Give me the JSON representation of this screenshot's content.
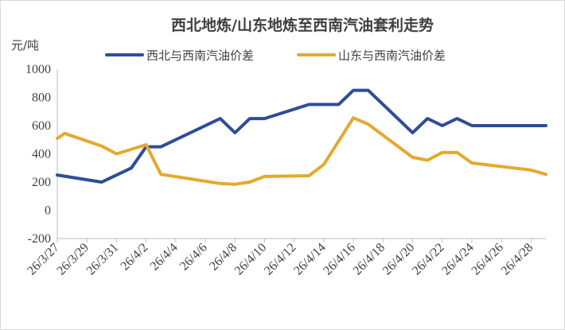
{
  "chart_data": {
    "type": "line",
    "title": "西北地炼/山东地炼至西南汽油套利走势",
    "ylabel": "元/吨",
    "xlabel": "",
    "ylim": [
      -200,
      1000
    ],
    "yticks": [
      -200,
      0,
      200,
      400,
      600,
      800,
      1000
    ],
    "x_range": [
      "26/3/27",
      "26/4/29"
    ],
    "xticks": [
      "26/3/27",
      "26/3/29",
      "26/3/31",
      "26/4/2",
      "26/4/4",
      "26/4/6",
      "26/4/8",
      "26/4/10",
      "26/4/12",
      "26/4/14",
      "26/4/16",
      "26/4/18",
      "26/4/20",
      "26/4/22",
      "26/4/24",
      "26/4/26",
      "26/4/28"
    ],
    "grid": false,
    "legend": "top",
    "series": [
      {
        "name": "西北与西南汽油价差",
        "color": "#2e4d9a",
        "points": [
          [
            "26/3/27",
            250
          ],
          [
            "26/3/30",
            200
          ],
          [
            "26/4/1",
            300
          ],
          [
            "26/4/2",
            450
          ],
          [
            "26/4/3",
            450
          ],
          [
            "26/4/7",
            650
          ],
          [
            "26/4/8",
            550
          ],
          [
            "26/4/9",
            650
          ],
          [
            "26/4/10",
            650
          ],
          [
            "26/4/13",
            750
          ],
          [
            "26/4/15",
            750
          ],
          [
            "26/4/16",
            850
          ],
          [
            "26/4/17",
            850
          ],
          [
            "26/4/20",
            550
          ],
          [
            "26/4/21",
            650
          ],
          [
            "26/4/22",
            600
          ],
          [
            "26/4/23",
            650
          ],
          [
            "26/4/24",
            600
          ],
          [
            "26/4/29",
            600
          ]
        ]
      },
      {
        "name": "山东与西南汽油价差",
        "color": "#e3a92f",
        "points": [
          [
            "26/3/27",
            510
          ],
          [
            "26/3/27.5",
            545
          ],
          [
            "26/3/30",
            455
          ],
          [
            "26/3/31",
            400
          ],
          [
            "26/4/2",
            465
          ],
          [
            "26/4/3",
            255
          ],
          [
            "26/4/7",
            190
          ],
          [
            "26/4/8",
            185
          ],
          [
            "26/4/9",
            200
          ],
          [
            "26/4/10",
            240
          ],
          [
            "26/4/13",
            245
          ],
          [
            "26/4/14",
            325
          ],
          [
            "26/4/16",
            655
          ],
          [
            "26/4/17",
            610
          ],
          [
            "26/4/20",
            375
          ],
          [
            "26/4/21",
            355
          ],
          [
            "26/4/22",
            410
          ],
          [
            "26/4/23",
            410
          ],
          [
            "26/4/24",
            335
          ],
          [
            "26/4/28",
            285
          ],
          [
            "26/4/29",
            255
          ]
        ]
      }
    ]
  }
}
